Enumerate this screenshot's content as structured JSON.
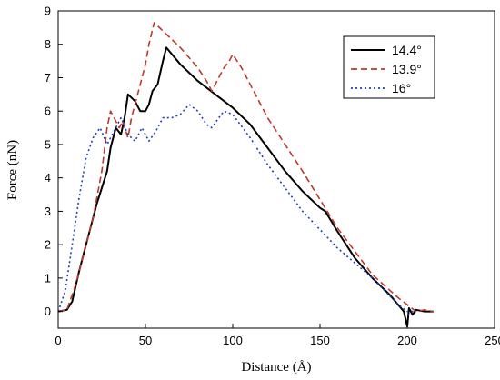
{
  "chart_data": {
    "type": "line",
    "xlabel": "Distance (Å)",
    "ylabel": "Force (nN)",
    "xlim": [
      0,
      250
    ],
    "ylim": [
      -0.5,
      9
    ],
    "xticks": [
      "0",
      "50",
      "100",
      "150",
      "200",
      "250"
    ],
    "yticks": [
      "0",
      "1",
      "2",
      "3",
      "4",
      "5",
      "6",
      "7",
      "8",
      "9"
    ],
    "grid": false,
    "legend_position": "top-right",
    "series": [
      {
        "name": "14.4°",
        "color": "#000000",
        "dash": "solid",
        "points": [
          [
            0,
            0
          ],
          [
            5,
            0.05
          ],
          [
            8,
            0.3
          ],
          [
            12,
            1.2
          ],
          [
            17,
            2.2
          ],
          [
            22,
            3.2
          ],
          [
            25,
            3.7
          ],
          [
            28,
            4.2
          ],
          [
            30,
            4.9
          ],
          [
            33,
            5.5
          ],
          [
            36,
            5.3
          ],
          [
            38,
            5.8
          ],
          [
            40,
            6.5
          ],
          [
            44,
            6.3
          ],
          [
            47,
            6.0
          ],
          [
            50,
            6.0
          ],
          [
            52,
            6.2
          ],
          [
            54,
            6.6
          ],
          [
            57,
            6.8
          ],
          [
            60,
            7.5
          ],
          [
            62,
            7.9
          ],
          [
            70,
            7.4
          ],
          [
            80,
            6.9
          ],
          [
            90,
            6.5
          ],
          [
            100,
            6.1
          ],
          [
            110,
            5.6
          ],
          [
            120,
            4.9
          ],
          [
            130,
            4.2
          ],
          [
            140,
            3.6
          ],
          [
            150,
            3.1
          ],
          [
            153,
            3.0
          ],
          [
            160,
            2.4
          ],
          [
            170,
            1.6
          ],
          [
            180,
            1.0
          ],
          [
            190,
            0.5
          ],
          [
            198,
            0.0
          ],
          [
            200,
            -0.45
          ],
          [
            201,
            0.1
          ],
          [
            203,
            -0.1
          ],
          [
            205,
            0.05
          ],
          [
            210,
            0.0
          ],
          [
            215,
            0.0
          ]
        ]
      },
      {
        "name": "13.9°",
        "color": "#c0392b",
        "dash": "dashed",
        "points": [
          [
            0,
            0
          ],
          [
            5,
            0.05
          ],
          [
            10,
            0.8
          ],
          [
            15,
            1.8
          ],
          [
            20,
            2.8
          ],
          [
            25,
            4.2
          ],
          [
            28,
            5.5
          ],
          [
            30,
            6.0
          ],
          [
            33,
            5.7
          ],
          [
            35,
            5.5
          ],
          [
            37,
            5.7
          ],
          [
            40,
            5.2
          ],
          [
            42,
            5.8
          ],
          [
            45,
            6.4
          ],
          [
            48,
            7.0
          ],
          [
            50,
            7.4
          ],
          [
            52,
            8.0
          ],
          [
            55,
            8.65
          ],
          [
            60,
            8.4
          ],
          [
            70,
            7.9
          ],
          [
            80,
            7.3
          ],
          [
            85,
            6.9
          ],
          [
            88,
            6.6
          ],
          [
            92,
            7.0
          ],
          [
            95,
            7.3
          ],
          [
            98,
            7.5
          ],
          [
            100,
            7.7
          ],
          [
            105,
            7.3
          ],
          [
            120,
            5.8
          ],
          [
            140,
            4.2
          ],
          [
            160,
            2.5
          ],
          [
            180,
            1.1
          ],
          [
            195,
            0.4
          ],
          [
            205,
            0.0
          ],
          [
            210,
            0.05
          ],
          [
            215,
            0.0
          ]
        ]
      },
      {
        "name": "16°",
        "color": "#1f3fbf",
        "dash": "dotted",
        "points": [
          [
            0,
            0
          ],
          [
            4,
            0.6
          ],
          [
            8,
            2.0
          ],
          [
            12,
            3.4
          ],
          [
            16,
            4.6
          ],
          [
            20,
            5.2
          ],
          [
            24,
            5.5
          ],
          [
            28,
            5.0
          ],
          [
            32,
            5.4
          ],
          [
            36,
            5.8
          ],
          [
            40,
            5.3
          ],
          [
            44,
            5.1
          ],
          [
            48,
            5.5
          ],
          [
            52,
            5.1
          ],
          [
            56,
            5.4
          ],
          [
            60,
            5.8
          ],
          [
            65,
            5.8
          ],
          [
            70,
            5.9
          ],
          [
            75,
            6.2
          ],
          [
            80,
            6.0
          ],
          [
            85,
            5.6
          ],
          [
            88,
            5.5
          ],
          [
            92,
            5.8
          ],
          [
            95,
            6.0
          ],
          [
            100,
            5.9
          ],
          [
            110,
            5.2
          ],
          [
            120,
            4.4
          ],
          [
            140,
            3.0
          ],
          [
            160,
            1.9
          ],
          [
            180,
            1.0
          ],
          [
            195,
            0.2
          ],
          [
            200,
            0.0
          ],
          [
            205,
            0.0
          ]
        ]
      }
    ]
  }
}
